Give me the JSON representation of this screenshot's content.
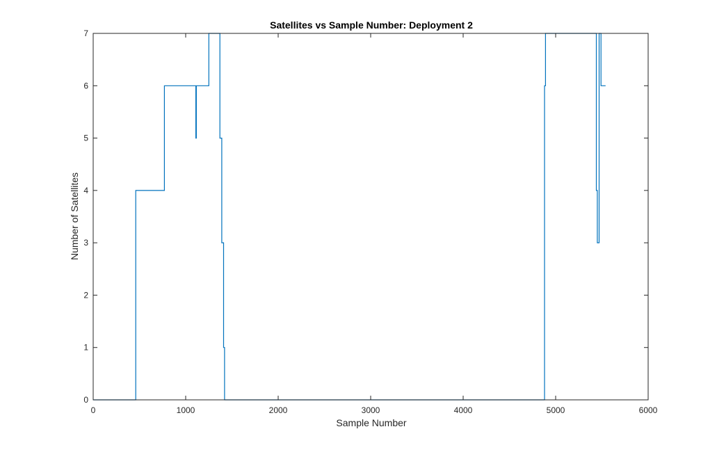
{
  "chart_data": {
    "type": "line",
    "title": "Satellites vs Sample Number: Deployment 2",
    "xlabel": "Sample Number",
    "ylabel": "Number of Satellites",
    "xlim": [
      0,
      6000
    ],
    "ylim": [
      0,
      7
    ],
    "xticks": [
      "0",
      "1000",
      "2000",
      "3000",
      "4000",
      "5000",
      "6000"
    ],
    "yticks": [
      "0",
      "1",
      "2",
      "3",
      "4",
      "5",
      "6",
      "7"
    ],
    "grid": false,
    "series": [
      {
        "color": "#0072bd",
        "x": [
          1,
          460,
          460,
          770,
          770,
          1110,
          1110,
          1115,
          1115,
          1250,
          1250,
          1370,
          1370,
          1390,
          1390,
          1410,
          1410,
          1420,
          1420,
          1430,
          1430,
          4880,
          4880,
          4890,
          4890,
          5440,
          5440,
          5450,
          5450,
          5470,
          5470,
          5490,
          5490,
          5540
        ],
        "y": [
          0,
          0,
          4,
          4,
          6,
          6,
          5,
          5,
          6,
          6,
          7,
          7,
          5,
          5,
          3,
          3,
          1,
          1,
          0,
          0,
          0,
          0,
          6,
          6,
          7,
          7,
          4,
          4,
          3,
          3,
          7,
          7,
          6,
          6
        ]
      }
    ]
  }
}
